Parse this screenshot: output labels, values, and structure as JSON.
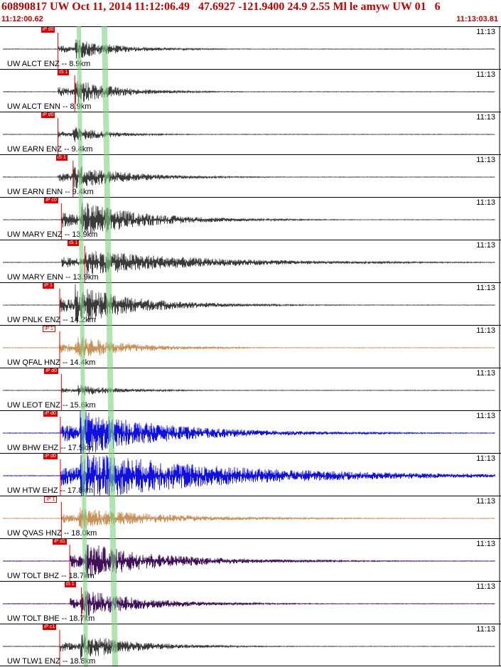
{
  "header": {
    "title": "60890817 UW Oct 11, 2014 11:12:06.49   47.6927 -121.9400 24.9 2.55 Ml le amyw UW 01   6",
    "start_time": "11:12:00.62",
    "end_time": "11:13:03.81"
  },
  "traces": [
    {
      "label": "UW ALCT ENZ -- 8.9km",
      "time_mark": "11:13",
      "pick": "iP d0",
      "pick_style": "filled",
      "color": "#3a3a3a",
      "onset": 0.165,
      "s_onset": 0.215,
      "amp": 0.45,
      "decay": 0.1
    },
    {
      "label": "UW ALCT ENN -- 8.9km",
      "time_mark": "11:13",
      "pick": "iS 1",
      "pick_style": "filled",
      "color": "#3a3a3a",
      "onset": 0.165,
      "s_onset": 0.215,
      "amp": 0.55,
      "decay": 0.1
    },
    {
      "label": "UW EARN ENZ -- 9.4km",
      "time_mark": "11:13",
      "pick": "iP d0",
      "pick_style": "filled",
      "color": "#3a3a3a",
      "onset": 0.165,
      "s_onset": 0.21,
      "amp": 0.35,
      "decay": 0.08
    },
    {
      "label": "UW EARN ENN -- 9.4km",
      "time_mark": "11:13",
      "pick": "iS 1",
      "pick_style": "filled",
      "color": "#3a3a3a",
      "onset": 0.165,
      "s_onset": 0.21,
      "amp": 0.55,
      "decay": 0.12
    },
    {
      "label": "UW MARY ENZ -- 13.9km",
      "time_mark": "11:13",
      "pick": "iP c0",
      "pick_style": "filled",
      "color": "#3a3a3a",
      "onset": 0.175,
      "s_onset": 0.235,
      "amp": 0.8,
      "decay": 0.14
    },
    {
      "label": "UW MARY ENN -- 13.9km",
      "time_mark": "11:13",
      "pick": "iS 1",
      "pick_style": "filled",
      "color": "#3a3a3a",
      "onset": 0.175,
      "s_onset": 0.245,
      "amp": 0.55,
      "decay": 0.25
    },
    {
      "label": "UW PNLK ENZ -- 14.2km",
      "time_mark": "11:13",
      "pick": "iP 1",
      "pick_style": "filled",
      "color": "#3a3a3a",
      "onset": 0.17,
      "s_onset": 0.215,
      "amp": 0.85,
      "decay": 0.14
    },
    {
      "label": "UW QFAL HNZ -- 14.4km",
      "time_mark": "11:13",
      "pick": "iP 1",
      "pick_style": "open",
      "color": "#c8925a",
      "onset": 0.17,
      "s_onset": 0.215,
      "amp": 0.55,
      "decay": 0.12
    },
    {
      "label": "UW LEOT ENZ -- 15.6km",
      "time_mark": "11:13",
      "pick": "iP d0",
      "pick_style": "filled",
      "color": "#3a3a3a",
      "onset": 0.175,
      "s_onset": 0.225,
      "amp": 0.25,
      "decay": 0.1
    },
    {
      "label": "UW BHW EHZ -- 17.5km",
      "time_mark": "11:13",
      "pick": "iP d0",
      "pick_style": "filled",
      "color": "#1010e0",
      "onset": 0.172,
      "s_onset": 0.23,
      "amp": 0.95,
      "decay": 0.2
    },
    {
      "label": "UW HTW EHZ -- 17.8km",
      "time_mark": "11:13",
      "pick": "iP d0",
      "pick_style": "filled",
      "color": "#1010e0",
      "onset": 0.172,
      "s_onset": 0.23,
      "amp": 1.0,
      "decay": 0.35
    },
    {
      "label": "UW QVAS HNZ -- 18.0km",
      "time_mark": "11:13",
      "pick": "iP 1",
      "pick_style": "open",
      "color": "#c8925a",
      "onset": 0.175,
      "s_onset": 0.225,
      "amp": 0.45,
      "decay": 0.2
    },
    {
      "label": "UW TOLT BHZ -- 18.7km",
      "time_mark": "11:13",
      "pick": "iP d1",
      "pick_style": "filled",
      "color": "#40105a",
      "onset": 0.2,
      "s_onset": 0.245,
      "amp": 0.75,
      "decay": 0.18
    },
    {
      "label": "UW TOLT BHE -- 18.7km",
      "time_mark": "11:13",
      "pick": "iS 1",
      "pick_style": "filled",
      "color": "#40105a",
      "onset": 0.2,
      "s_onset": 0.235,
      "amp": 0.6,
      "decay": 0.14
    },
    {
      "label": "UW TLW1 ENZ -- 18.8km",
      "time_mark": "11:13",
      "pick": "iP c1",
      "pick_style": "filled",
      "color": "#3a3a3a",
      "onset": 0.17,
      "s_onset": 0.23,
      "amp": 0.6,
      "decay": 0.12
    }
  ],
  "colors": {
    "pick_marker": "#e00000",
    "green_window": "#7fd17f",
    "header_text": "#c00000"
  }
}
